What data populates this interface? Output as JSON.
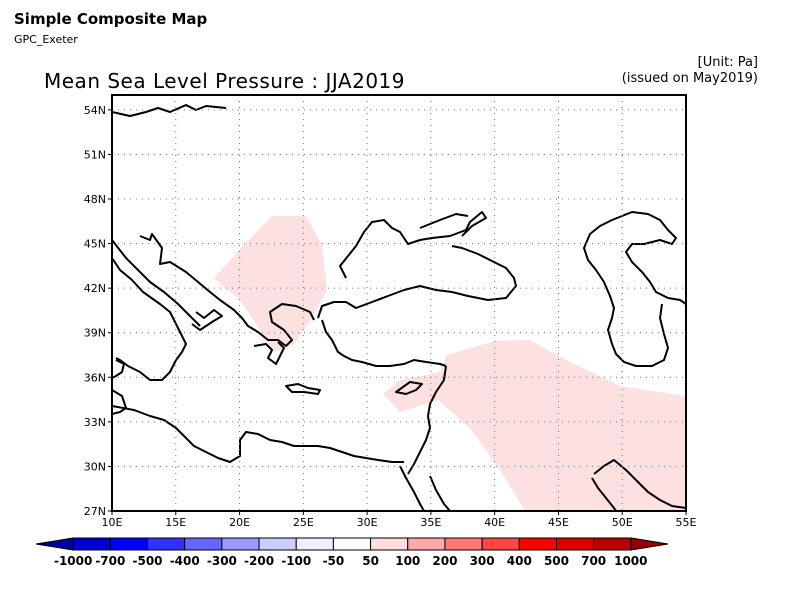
{
  "header": {
    "title": "Simple Composite Map",
    "subtitle": "GPC_Exeter",
    "unit": "[Unit: Pa]",
    "issued": "(issued on May2019)"
  },
  "map": {
    "title": "Mean Sea Level Pressure : JJA2019",
    "lon_range": [
      10,
      55
    ],
    "lat_range": [
      27,
      55
    ],
    "x_ticks": [
      "10E",
      "15E",
      "20E",
      "25E",
      "30E",
      "35E",
      "40E",
      "45E",
      "50E",
      "55E"
    ],
    "y_ticks": [
      "27N",
      "30N",
      "33N",
      "36N",
      "39N",
      "42N",
      "45N",
      "48N",
      "51N",
      "54N"
    ],
    "anomaly_regions": [
      {
        "category": "50 to 100 Pa",
        "color": "#fde0e0",
        "area": "Balkans / Greece"
      },
      {
        "category": "50 to 100 Pa",
        "color": "#fde0e0",
        "area": "Eastern Mediterranean, Middle East, Arabian Peninsula"
      }
    ]
  },
  "colorbar": {
    "labels": [
      "-1000",
      "-700",
      "-500",
      "-400",
      "-300",
      "-200",
      "-100",
      "-50",
      "50",
      "100",
      "200",
      "300",
      "400",
      "500",
      "700",
      "1000"
    ],
    "colors": [
      "#0000a0",
      "#0000d0",
      "#0000ff",
      "#3333ff",
      "#6666ff",
      "#9999ff",
      "#ccccff",
      "#eeeeff",
      "#ffffff",
      "#ffdddd",
      "#ffaaaa",
      "#ff7777",
      "#ff4444",
      "#ff0000",
      "#dd0000",
      "#bb0000",
      "#990000"
    ]
  }
}
